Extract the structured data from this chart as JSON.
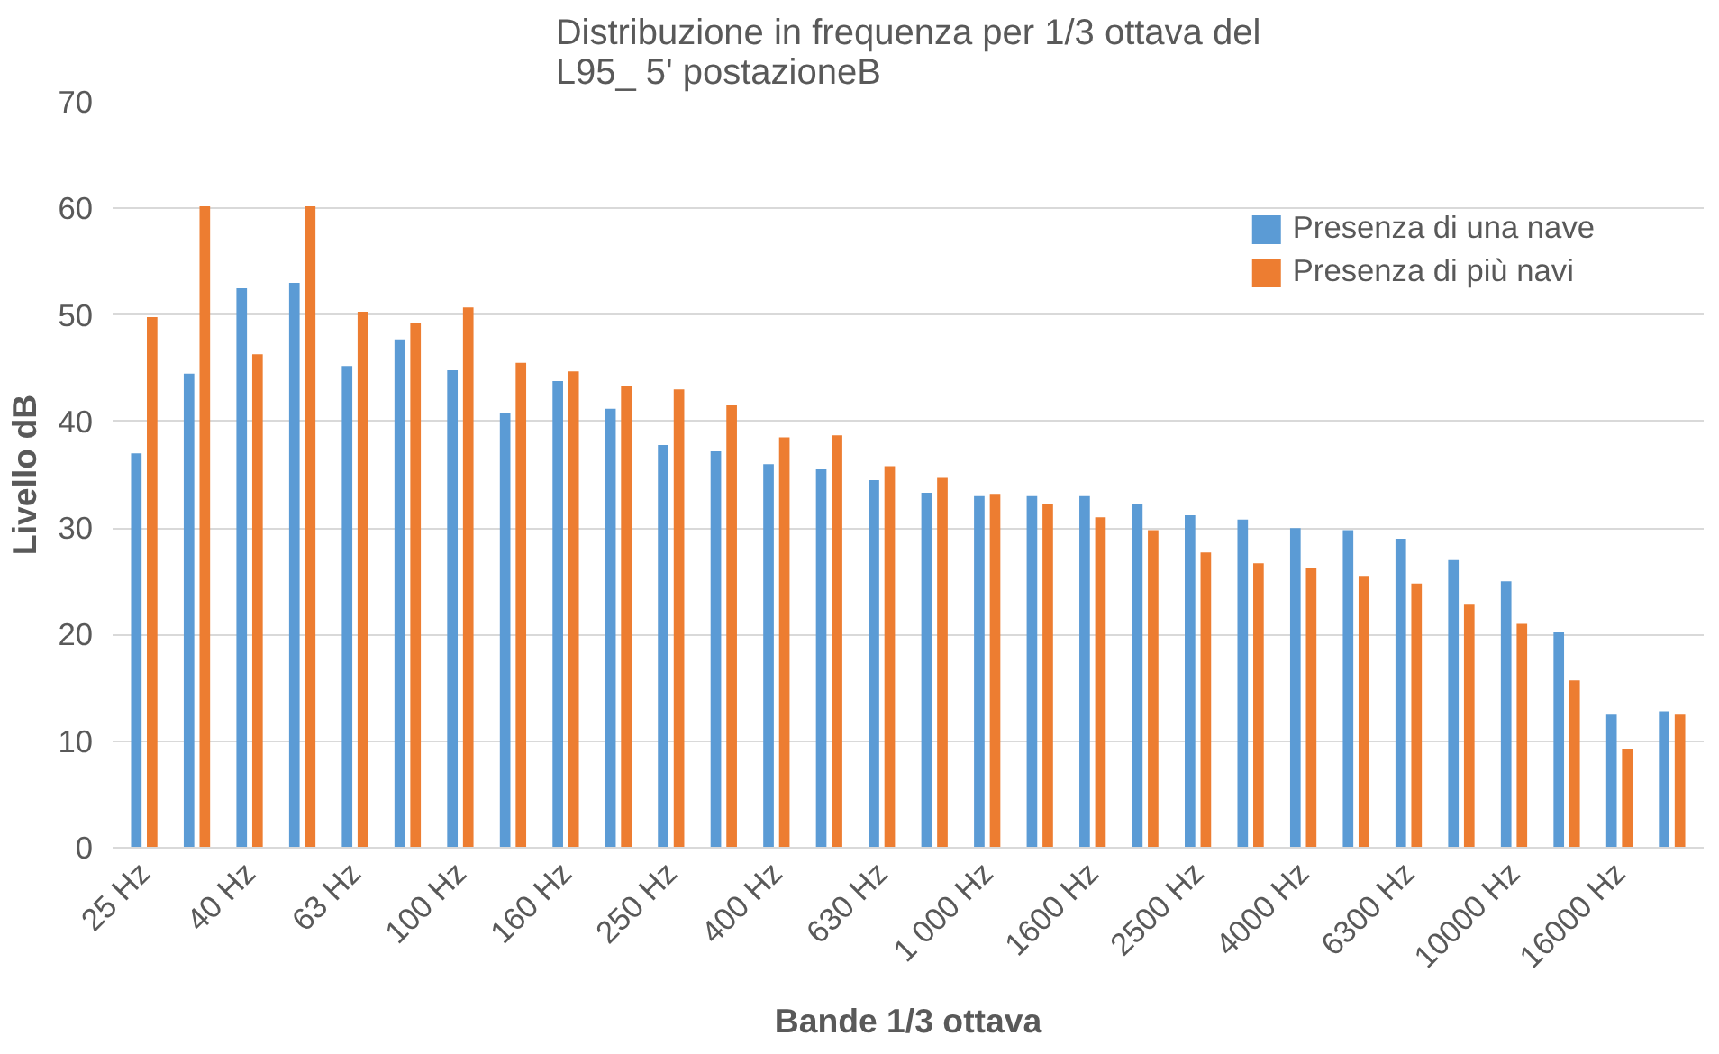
{
  "chart_data": {
    "type": "bar",
    "title": "Distribuzione in frequenza per 1/3 ottava del\nL95_ 5' postazioneB",
    "xlabel": "Bande 1/3 ottava",
    "ylabel": "Livello dB",
    "categories": [
      "25 Hz",
      null,
      "40 Hz",
      null,
      "63 Hz",
      null,
      "100 Hz",
      null,
      "160 Hz",
      null,
      "250 Hz",
      null,
      "400 Hz",
      null,
      "630 Hz",
      null,
      "1 000 Hz",
      null,
      "1600 Hz",
      null,
      "2500 Hz",
      null,
      "4000 Hz",
      null,
      "6300 Hz",
      null,
      "10000 Hz",
      null,
      "16000 Hz",
      null
    ],
    "series": [
      {
        "name": "Presenza di una nave",
        "color": "#5b9bd5",
        "values": [
          37,
          44.5,
          52.5,
          53,
          45.2,
          47.7,
          44.8,
          40.8,
          43.8,
          41.2,
          37.8,
          37.2,
          36,
          35.5,
          34.5,
          33.3,
          33,
          33,
          33,
          32.2,
          31.2,
          30.8,
          30,
          29.8,
          29,
          27,
          25,
          20.2,
          12.5,
          12.8
        ]
      },
      {
        "name": "Presenza di più navi",
        "color": "#ed7d31",
        "values": [
          49.8,
          60.2,
          46.3,
          60.2,
          50.3,
          49.2,
          50.7,
          45.5,
          44.7,
          43.3,
          43,
          41.5,
          38.5,
          38.7,
          35.8,
          34.7,
          33.2,
          32.2,
          31,
          29.8,
          27.7,
          26.7,
          26.2,
          25.5,
          24.8,
          22.8,
          21,
          15.7,
          9.3,
          12.5
        ]
      }
    ],
    "ylim": [
      0,
      70
    ],
    "yticks": [
      0,
      10,
      20,
      30,
      40,
      50,
      60,
      70
    ],
    "grid": "y",
    "legend": "top right"
  }
}
